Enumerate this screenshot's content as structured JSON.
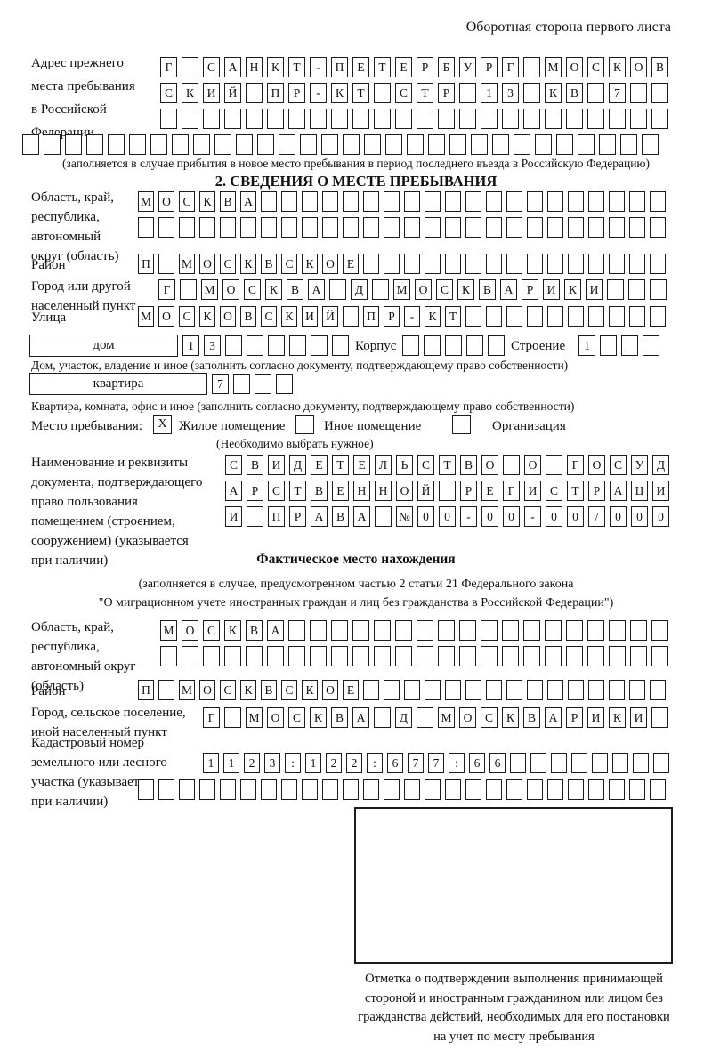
{
  "page": {
    "side_note": "Оборотная сторона первого листа"
  },
  "prev_address": {
    "label_lines": [
      "Адрес прежнего",
      "места пребывания",
      "в Российской",
      "Федерации"
    ],
    "rows": [
      {
        "n": 24,
        "v": "Г САНКТ-ПЕТЕРБУРГ МОСКОВ"
      },
      {
        "n": 24,
        "v": "СКИЙ ПР-КТ СТР 13 КВ 7"
      },
      {
        "n": 24,
        "v": ""
      },
      {
        "n": 30,
        "v": ""
      }
    ],
    "note": "(заполняется в случае прибытия в новое место пребывания в период последнего въезда в Российскую Федерацию)"
  },
  "section2": {
    "title": "2. СВЕДЕНИЯ О МЕСТЕ ПРЕБЫВАНИЯ",
    "oblast": {
      "label_lines": [
        "Область, край,",
        "республика,",
        "автономный",
        "округ (область)"
      ],
      "rows": [
        {
          "n": 26,
          "v": "МОСКВА"
        },
        {
          "n": 26,
          "v": ""
        }
      ]
    },
    "raion": {
      "label": "Район",
      "row": {
        "n": 26,
        "v": "П МОСКВСКОЕ"
      }
    },
    "gorod": {
      "label_lines": [
        "Город или другой",
        "населенный пункт"
      ],
      "row": {
        "n": 24,
        "v": "Г МОСКВА Д МОСКВАРИКИ"
      }
    },
    "ulitsa": {
      "label": "Улица",
      "row": {
        "n": 26,
        "v": "МОСКОВСКИЙ ПР-КТ"
      }
    },
    "dom": {
      "box_label": "дом",
      "row": {
        "n": 8,
        "v": "13"
      },
      "korpus_label": "Корпус",
      "korpus_row": {
        "n": 5,
        "v": ""
      },
      "stroenie_label": "Строение",
      "stroenie_row": {
        "n": 4,
        "v": "1"
      },
      "note": "Дом, участок, владение и иное (заполнить согласно документу, подтверждающему право собственности)"
    },
    "kvartira": {
      "box_label": "квартира",
      "row": {
        "n": 4,
        "v": "7"
      },
      "note": "Квартира, комната, офис и иное (заполнить согласно документу, подтверждающему право собственности)"
    },
    "mesto": {
      "label": "Место пребывания:",
      "options": [
        {
          "label": "Жилое помещение",
          "checked": "X"
        },
        {
          "label": "Иное помещение",
          "checked": ""
        },
        {
          "label": "Организация",
          "checked": ""
        }
      ],
      "note": "(Необходимо выбрать нужное)"
    },
    "doc": {
      "label_lines": [
        "Наименование и реквизиты",
        "документа, подтверждающего",
        "право пользования",
        "помещением (строением,",
        "сооружением) (указывается",
        "при наличии)"
      ],
      "rows": [
        {
          "n": 21,
          "v": "СВИДЕТЕЛЬСТВО О ГОСУД"
        },
        {
          "n": 21,
          "v": "АРСТВЕННОЙ РЕГИСТРАЦИ"
        },
        {
          "n": 21,
          "v": "И ПРАВА №00-00-00/000"
        }
      ]
    }
  },
  "fact": {
    "title": "Фактическое место нахождения",
    "note_lines": [
      "(заполняется в случае, предусмотренном частью 2 статьи 21 Федерального закона",
      "\"О миграционном учете иностранных граждан и лиц без гражданства в Российской Федерации\")"
    ],
    "oblast": {
      "label_lines": [
        "Область, край,",
        "республика,",
        "автономный округ",
        "(область)"
      ],
      "rows": [
        {
          "n": 24,
          "v": "МОСКВА"
        },
        {
          "n": 24,
          "v": ""
        }
      ]
    },
    "raion": {
      "label": "Район",
      "row": {
        "n": 26,
        "v": "П МОСКВСКОЕ"
      }
    },
    "gorod": {
      "label_lines": [
        "Город, сельское поселение,",
        "иной населенный пункт"
      ],
      "row": {
        "n": 22,
        "v": "Г МОСКВА Д МОСКВАРИКИ"
      }
    },
    "kadastr": {
      "label_lines": [
        "Кадастровый номер",
        "земельного или лесного",
        "участка (указывается",
        "при наличии)"
      ],
      "rows": [
        {
          "n": 23,
          "v": "1123:122:677:66"
        },
        {
          "n": 26,
          "v": ""
        }
      ]
    }
  },
  "stamp": {
    "caption_lines": [
      "Отметка о подтверждении выполнения принимающей",
      "стороной и иностранным гражданином или лицом без",
      "гражданства действий, необходимых для его постановки",
      "на учет по месту пребывания"
    ]
  }
}
